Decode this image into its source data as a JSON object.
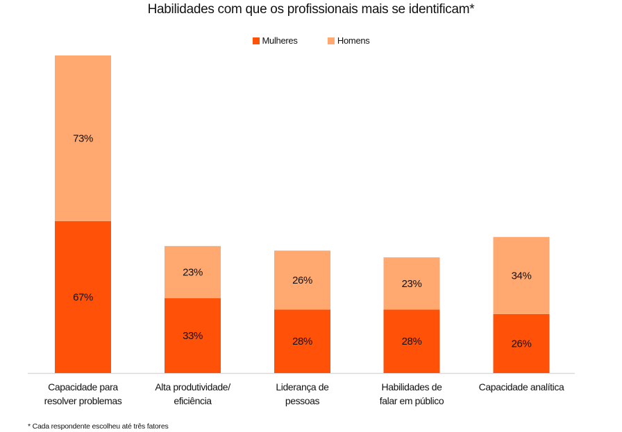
{
  "chart_data": {
    "type": "bar",
    "stacked": true,
    "title": "Habilidades com que os profissionais mais se identificam*",
    "xlabel": "",
    "ylabel": "",
    "categories": [
      "Capacidade para\nresolver problemas",
      "Alta produtividade/\neficiência",
      "Liderança de\npessoas",
      "Habilidades de\nfalar em público",
      "Capacidade analítica"
    ],
    "series": [
      {
        "name": "Mulheres",
        "color": "#ff5208",
        "values": [
          67,
          33,
          28,
          28,
          26
        ],
        "labels": [
          "67%",
          "33%",
          "28%",
          "28%",
          "26%"
        ]
      },
      {
        "name": "Homens",
        "color": "#ffa86f",
        "values": [
          73,
          23,
          26,
          23,
          34
        ],
        "labels": [
          "73%",
          "23%",
          "26%",
          "23%",
          "34%"
        ]
      }
    ],
    "ylim": [
      0,
      140
    ],
    "grid": false,
    "legend_position": "top-center",
    "footnote": "* Cada respondente escolheu até três fatores"
  }
}
